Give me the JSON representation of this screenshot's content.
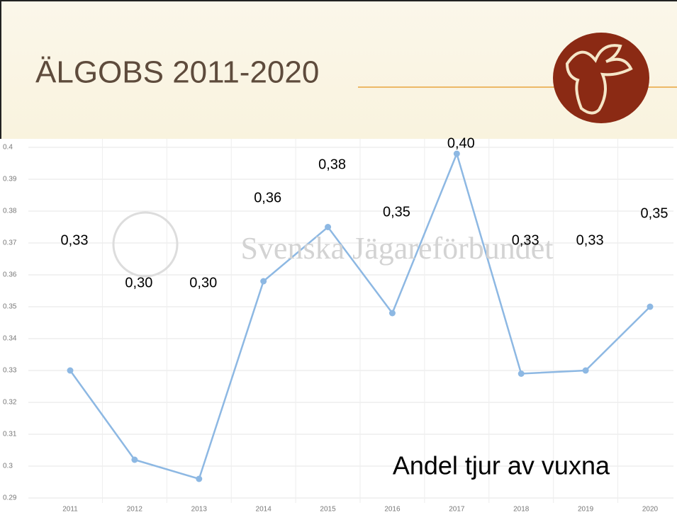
{
  "chart_data": {
    "type": "line",
    "title": "ÄLGOBS 2011-2020",
    "watermark": "Svenska Jägareförbundet",
    "annotation": "Andel tjur av vuxna",
    "categories": [
      "2011",
      "2012",
      "2013",
      "2014",
      "2015",
      "2016",
      "2017",
      "2018",
      "2019",
      "2020"
    ],
    "values": [
      0.33,
      0.302,
      0.296,
      0.358,
      0.375,
      0.348,
      0.398,
      0.329,
      0.33,
      0.35
    ],
    "value_labels": [
      "0,33",
      "0,30",
      "0,30",
      "0,36",
      "0,38",
      "0,35",
      "0,40",
      "0,33",
      "0,33",
      "0,35"
    ],
    "color": "#8db8e3",
    "ylim": [
      0.29,
      0.4
    ],
    "yticks": [
      0.29,
      0.3,
      0.31,
      0.32,
      0.33,
      0.34,
      0.35,
      0.36,
      0.37,
      0.38,
      0.39,
      0.4
    ],
    "grid": true
  }
}
